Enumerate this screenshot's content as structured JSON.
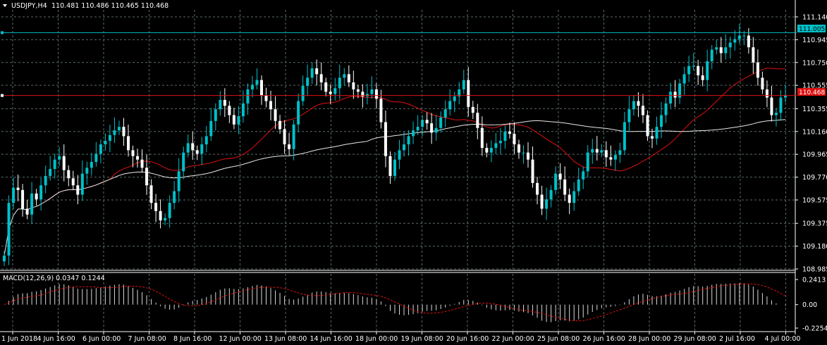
{
  "header": {
    "symbol_label": "USDJPY,H4",
    "ohlc": "110.481 110.486 110.465 110.468"
  },
  "macd": {
    "label": "MACD(12,26,9) 0.0347 0.1244",
    "axis_labels": [
      "0.2413",
      "0.00",
      "-0.2254"
    ]
  },
  "price_axis": {
    "labels": [
      "111.140",
      "110.945",
      "110.750",
      "110.555",
      "110.355",
      "110.160",
      "109.965",
      "109.770",
      "109.575",
      "109.375",
      "109.180",
      "108.985"
    ]
  },
  "markers": {
    "cyan_level": "111.005",
    "red_level": "110.468"
  },
  "time_axis": {
    "labels": [
      "1 Jun 2018",
      "4 Jun 16:00",
      "6 Jun 00:00",
      "7 Jun 08:00",
      "8 Jun 16:00",
      "12 Jun 00:00",
      "13 Jun 08:00",
      "14 Jun 16:00",
      "18 Jun 00:00",
      "19 Jun 08:00",
      "20 Jun 16:00",
      "22 Jun 00:00",
      "25 Jun 08:00",
      "26 Jun 16:00",
      "28 Jun 00:00",
      "29 Jun 08:00",
      "2 Jul 16:00",
      "4 Jul 00:00"
    ]
  },
  "colors": {
    "background": "#000000",
    "bull": "#00c0c8",
    "bear": "#ffffff",
    "grid": "#5a6a6a",
    "red_ma": "#e01010",
    "white_ma": "#e8e8e8",
    "cyan_line": "#00c0c8",
    "red_line": "#e01010"
  },
  "chart_data": {
    "type": "candlestick",
    "symbol": "USDJPY",
    "timeframe": "H4",
    "ylim": [
      108.985,
      111.2
    ],
    "price_ticks": [
      111.14,
      110.945,
      110.75,
      110.555,
      110.355,
      110.16,
      109.965,
      109.77,
      109.575,
      109.375,
      109.18,
      108.985
    ],
    "series": [
      {
        "name": "close",
        "values": [
          109.1,
          109.55,
          109.68,
          109.66,
          109.5,
          109.45,
          109.63,
          109.58,
          109.7,
          109.78,
          109.84,
          109.92,
          109.95,
          109.83,
          109.76,
          109.7,
          109.62,
          109.8,
          109.85,
          109.9,
          109.97,
          110.05,
          110.08,
          110.13,
          110.17,
          110.2,
          110.12,
          110.0,
          109.95,
          109.92,
          109.85,
          109.7,
          109.55,
          109.48,
          109.4,
          109.42,
          109.55,
          109.65,
          109.82,
          109.98,
          110.06,
          110.0,
          109.97,
          110.05,
          110.12,
          110.25,
          110.35,
          110.43,
          110.38,
          110.3,
          110.22,
          110.29,
          110.4,
          110.52,
          110.56,
          110.6,
          110.47,
          110.42,
          110.35,
          110.25,
          110.18,
          110.05,
          110.01,
          110.22,
          110.42,
          110.55,
          110.62,
          110.7,
          110.65,
          110.58,
          110.5,
          110.48,
          110.53,
          110.62,
          110.65,
          110.58,
          110.52,
          110.5,
          110.46,
          110.48,
          110.52,
          110.44,
          110.24,
          109.95,
          109.78,
          109.92,
          110.0,
          110.05,
          110.12,
          110.17,
          110.2,
          110.26,
          110.23,
          110.15,
          110.19,
          110.28,
          110.35,
          110.42,
          110.46,
          110.52,
          110.6,
          110.37,
          110.32,
          110.19,
          110.02,
          109.98,
          110.02,
          110.06,
          110.08,
          110.16,
          110.14,
          110.05,
          109.98,
          109.98,
          109.92,
          109.72,
          109.62,
          109.5,
          109.58,
          109.66,
          109.8,
          109.75,
          109.62,
          109.55,
          109.65,
          109.75,
          109.82,
          109.98,
          110.01,
          109.98,
          110.0,
          109.94,
          109.92,
          109.96,
          110.0,
          110.24,
          110.35,
          110.42,
          110.38,
          110.3,
          110.12,
          110.1,
          110.2,
          110.3,
          110.4,
          110.5,
          110.45,
          110.57,
          110.65,
          110.72,
          110.72,
          110.64,
          110.6,
          110.76,
          110.86,
          110.88,
          110.83,
          110.88,
          110.92,
          110.95,
          110.98,
          110.98,
          110.88,
          110.75,
          110.62,
          110.52,
          110.45,
          110.3,
          110.32,
          110.45,
          110.47
        ]
      }
    ],
    "indicators": [
      {
        "name": "MA red",
        "color": "red"
      },
      {
        "name": "MA white",
        "color": "white"
      },
      {
        "name": "MACD(12,26,9)",
        "main": 0.0347,
        "signal": 0.1244,
        "ylim": [
          -0.2254,
          0.2413
        ]
      }
    ],
    "horizontal_levels": [
      111.005,
      110.468
    ],
    "x_labels": [
      "1 Jun 2018",
      "4 Jun 16:00",
      "6 Jun 00:00",
      "7 Jun 08:00",
      "8 Jun 16:00",
      "12 Jun 00:00",
      "13 Jun 08:00",
      "14 Jun 16:00",
      "18 Jun 00:00",
      "19 Jun 08:00",
      "20 Jun 16:00",
      "22 Jun 00:00",
      "25 Jun 08:00",
      "26 Jun 16:00",
      "28 Jun 00:00",
      "29 Jun 08:00",
      "2 Jul 16:00",
      "4 Jul 00:00"
    ]
  }
}
